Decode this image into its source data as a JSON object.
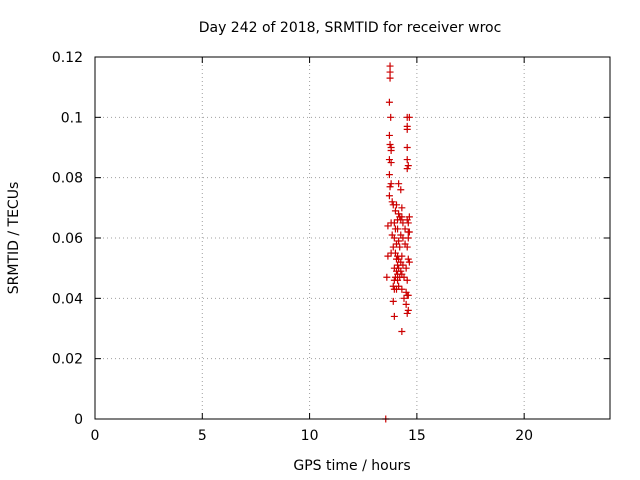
{
  "chart_data": {
    "type": "scatter",
    "title": "Day 242 of 2018, SRMTID for receiver wroc",
    "xlabel": "GPS time / hours",
    "ylabel": "SRMTID / TECUs",
    "xlim": [
      0,
      24
    ],
    "ylim": [
      0,
      0.12
    ],
    "xticks": [
      0,
      5,
      10,
      15,
      20
    ],
    "xtick_labels": [
      "0",
      "5",
      "10",
      "15",
      "20"
    ],
    "yticks": [
      0,
      0.02,
      0.04,
      0.06,
      0.08,
      0.1,
      0.12
    ],
    "ytick_labels": [
      "0",
      "0.02",
      "0.04",
      "0.06",
      "0.08",
      "0.1",
      "0.12"
    ],
    "grid": true,
    "legend": "none",
    "marker": "plus",
    "color": "#cc0000",
    "series": [
      {
        "name": "SRMTID",
        "points": [
          [
            13.75,
            0.117
          ],
          [
            13.75,
            0.115
          ],
          [
            13.75,
            0.113
          ],
          [
            13.72,
            0.105
          ],
          [
            13.78,
            0.1
          ],
          [
            14.55,
            0.1
          ],
          [
            14.65,
            0.1
          ],
          [
            14.55,
            0.097
          ],
          [
            14.55,
            0.096
          ],
          [
            13.72,
            0.094
          ],
          [
            13.75,
            0.091
          ],
          [
            13.8,
            0.09
          ],
          [
            13.8,
            0.089
          ],
          [
            14.55,
            0.09
          ],
          [
            14.55,
            0.086
          ],
          [
            13.72,
            0.086
          ],
          [
            13.8,
            0.085
          ],
          [
            14.6,
            0.084
          ],
          [
            14.55,
            0.083
          ],
          [
            13.72,
            0.081
          ],
          [
            13.8,
            0.078
          ],
          [
            14.15,
            0.078
          ],
          [
            13.75,
            0.077
          ],
          [
            14.25,
            0.076
          ],
          [
            13.72,
            0.074
          ],
          [
            13.85,
            0.072
          ],
          [
            13.9,
            0.071
          ],
          [
            14.05,
            0.071
          ],
          [
            14.3,
            0.07
          ],
          [
            14.0,
            0.069
          ],
          [
            14.15,
            0.068
          ],
          [
            14.2,
            0.067
          ],
          [
            14.3,
            0.067
          ],
          [
            14.25,
            0.066
          ],
          [
            14.1,
            0.066
          ],
          [
            14.55,
            0.066
          ],
          [
            14.65,
            0.067
          ],
          [
            13.95,
            0.065
          ],
          [
            13.8,
            0.065
          ],
          [
            14.35,
            0.065
          ],
          [
            14.6,
            0.065
          ],
          [
            13.65,
            0.064
          ],
          [
            14.0,
            0.063
          ],
          [
            14.1,
            0.063
          ],
          [
            14.45,
            0.063
          ],
          [
            14.6,
            0.062
          ],
          [
            14.65,
            0.062
          ],
          [
            13.85,
            0.061
          ],
          [
            14.25,
            0.061
          ],
          [
            13.95,
            0.06
          ],
          [
            14.35,
            0.06
          ],
          [
            14.6,
            0.06
          ],
          [
            14.15,
            0.059
          ],
          [
            14.05,
            0.058
          ],
          [
            14.45,
            0.058
          ],
          [
            13.9,
            0.057
          ],
          [
            14.2,
            0.057
          ],
          [
            14.55,
            0.057
          ],
          [
            13.8,
            0.055
          ],
          [
            14.0,
            0.055
          ],
          [
            14.1,
            0.054
          ],
          [
            14.3,
            0.054
          ],
          [
            13.65,
            0.054
          ],
          [
            14.05,
            0.053
          ],
          [
            14.15,
            0.053
          ],
          [
            14.6,
            0.053
          ],
          [
            14.65,
            0.052
          ],
          [
            14.25,
            0.052
          ],
          [
            14.1,
            0.051
          ],
          [
            14.35,
            0.051
          ],
          [
            13.95,
            0.05
          ],
          [
            14.15,
            0.05
          ],
          [
            14.5,
            0.05
          ],
          [
            14.05,
            0.049
          ],
          [
            14.25,
            0.049
          ],
          [
            14.1,
            0.048
          ],
          [
            14.3,
            0.048
          ],
          [
            14.0,
            0.047
          ],
          [
            14.2,
            0.047
          ],
          [
            14.4,
            0.047
          ],
          [
            13.6,
            0.047
          ],
          [
            13.95,
            0.046
          ],
          [
            14.1,
            0.046
          ],
          [
            14.55,
            0.046
          ],
          [
            13.9,
            0.044
          ],
          [
            14.15,
            0.044
          ],
          [
            14.3,
            0.043
          ],
          [
            13.95,
            0.043
          ],
          [
            14.05,
            0.043
          ],
          [
            14.5,
            0.042
          ],
          [
            14.55,
            0.041
          ],
          [
            14.6,
            0.041
          ],
          [
            14.4,
            0.04
          ],
          [
            13.9,
            0.039
          ],
          [
            14.5,
            0.038
          ],
          [
            14.6,
            0.036
          ],
          [
            14.55,
            0.035
          ],
          [
            13.95,
            0.034
          ],
          [
            14.3,
            0.029
          ],
          [
            13.55,
            0.0
          ]
        ]
      }
    ]
  }
}
